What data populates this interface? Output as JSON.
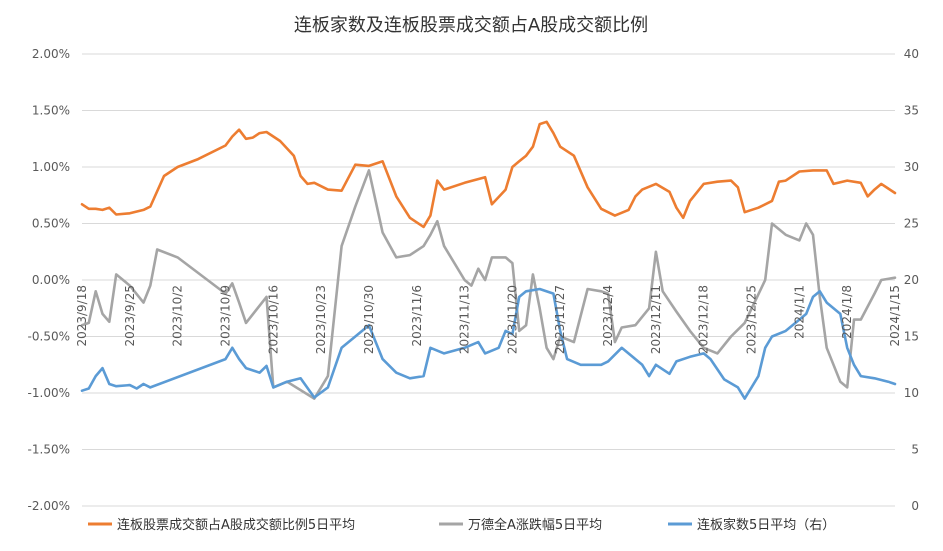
{
  "chart_data": {
    "type": "line",
    "title": "连板家数及连板股票成交额占A股成交额比例",
    "y_left_ticks": [
      "2.00%",
      "1.50%",
      "1.00%",
      "0.50%",
      "0.00%",
      "-0.50%",
      "-1.00%",
      "-1.50%",
      "-2.00%"
    ],
    "y_right_ticks": [
      "40",
      "35",
      "30",
      "25",
      "20",
      "15",
      "10",
      "5",
      "0"
    ],
    "ylim_left": [
      -2.0,
      2.0
    ],
    "ylim_right": [
      0,
      40
    ],
    "x_ticks": [
      "2023/9/18",
      "2023/9/25",
      "2023/10/2",
      "2023/10/9",
      "2023/10/16",
      "2023/10/23",
      "2023/10/30",
      "2023/11/6",
      "2023/11/13",
      "2023/11/20",
      "2023/11/27",
      "2023/12/4",
      "2023/12/11",
      "2023/12/18",
      "2023/12/25",
      "2024/1/1",
      "2024/1/8",
      "2024/1/15"
    ],
    "x_start": "2023/9/18",
    "x_end": "2024/1/15",
    "grid": "horizontal",
    "legend_position": "bottom",
    "series": [
      {
        "name": "连板股票成交额占A股成交额比例5日平均",
        "axis": "left",
        "color": "#ED7D31",
        "points": [
          [
            "2023/9/18",
            0.67
          ],
          [
            "2023/9/19",
            0.63
          ],
          [
            "2023/9/20",
            0.63
          ],
          [
            "2023/9/21",
            0.62
          ],
          [
            "2023/9/22",
            0.64
          ],
          [
            "2023/9/23",
            0.58
          ],
          [
            "2023/9/25",
            0.59
          ],
          [
            "2023/9/27",
            0.62
          ],
          [
            "2023/9/28",
            0.65
          ],
          [
            "2023/9/30",
            0.92
          ],
          [
            "2023/10/2",
            1.0
          ],
          [
            "2023/10/5",
            1.07
          ],
          [
            "2023/10/9",
            1.19
          ],
          [
            "2023/10/10",
            1.27
          ],
          [
            "2023/10/11",
            1.33
          ],
          [
            "2023/10/12",
            1.25
          ],
          [
            "2023/10/13",
            1.26
          ],
          [
            "2023/10/14",
            1.3
          ],
          [
            "2023/10/15",
            1.31
          ],
          [
            "2023/10/17",
            1.23
          ],
          [
            "2023/10/19",
            1.1
          ],
          [
            "2023/10/20",
            0.92
          ],
          [
            "2023/10/21",
            0.85
          ],
          [
            "2023/10/22",
            0.86
          ],
          [
            "2023/10/24",
            0.8
          ],
          [
            "2023/10/26",
            0.79
          ],
          [
            "2023/10/28",
            1.02
          ],
          [
            "2023/10/30",
            1.01
          ],
          [
            "2023/11/1",
            1.05
          ],
          [
            "2023/11/3",
            0.74
          ],
          [
            "2023/11/5",
            0.55
          ],
          [
            "2023/11/7",
            0.47
          ],
          [
            "2023/11/8",
            0.57
          ],
          [
            "2023/11/9",
            0.88
          ],
          [
            "2023/11/10",
            0.8
          ],
          [
            "2023/11/13",
            0.86
          ],
          [
            "2023/11/16",
            0.91
          ],
          [
            "2023/11/17",
            0.67
          ],
          [
            "2023/11/19",
            0.8
          ],
          [
            "2023/11/20",
            1.0
          ],
          [
            "2023/11/21",
            1.05
          ],
          [
            "2023/11/22",
            1.1
          ],
          [
            "2023/11/23",
            1.18
          ],
          [
            "2023/11/24",
            1.38
          ],
          [
            "2023/11/25",
            1.4
          ],
          [
            "2023/11/26",
            1.3
          ],
          [
            "2023/11/27",
            1.18
          ],
          [
            "2023/11/29",
            1.1
          ],
          [
            "2023/12/1",
            0.82
          ],
          [
            "2023/12/3",
            0.63
          ],
          [
            "2023/12/5",
            0.57
          ],
          [
            "2023/12/7",
            0.62
          ],
          [
            "2023/12/8",
            0.74
          ],
          [
            "2023/12/9",
            0.8
          ],
          [
            "2023/12/11",
            0.85
          ],
          [
            "2023/12/13",
            0.78
          ],
          [
            "2023/12/14",
            0.64
          ],
          [
            "2023/12/15",
            0.55
          ],
          [
            "2023/12/16",
            0.7
          ],
          [
            "2023/12/18",
            0.85
          ],
          [
            "2023/12/20",
            0.87
          ],
          [
            "2023/12/22",
            0.88
          ],
          [
            "2023/12/23",
            0.82
          ],
          [
            "2023/12/24",
            0.6
          ],
          [
            "2023/12/26",
            0.64
          ],
          [
            "2023/12/28",
            0.7
          ],
          [
            "2023/12/29",
            0.87
          ],
          [
            "2023/12/30",
            0.88
          ],
          [
            "2024/1/1",
            0.96
          ],
          [
            "2024/1/3",
            0.97
          ],
          [
            "2024/1/5",
            0.97
          ],
          [
            "2024/1/6",
            0.85
          ],
          [
            "2024/1/8",
            0.88
          ],
          [
            "2024/1/10",
            0.86
          ],
          [
            "2024/1/11",
            0.74
          ],
          [
            "2024/1/12",
            0.8
          ],
          [
            "2024/1/13",
            0.85
          ],
          [
            "2024/1/14",
            0.81
          ],
          [
            "2024/1/15",
            0.77
          ]
        ]
      },
      {
        "name": "万德全A涨跌幅5日平均",
        "axis": "left",
        "color": "#A5A5A5",
        "points": [
          [
            "2023/9/18",
            -0.4
          ],
          [
            "2023/9/19",
            -0.38
          ],
          [
            "2023/9/20",
            -0.1
          ],
          [
            "2023/9/21",
            -0.3
          ],
          [
            "2023/9/22",
            -0.37
          ],
          [
            "2023/9/23",
            0.05
          ],
          [
            "2023/9/25",
            -0.05
          ],
          [
            "2023/9/27",
            -0.2
          ],
          [
            "2023/9/28",
            -0.05
          ],
          [
            "2023/9/29",
            0.27
          ],
          [
            "2023/10/2",
            0.2
          ],
          [
            "2023/10/9",
            -0.12
          ],
          [
            "2023/10/10",
            -0.03
          ],
          [
            "2023/10/11",
            -0.2
          ],
          [
            "2023/10/12",
            -0.38
          ],
          [
            "2023/10/15",
            -0.15
          ],
          [
            "2023/10/16",
            -0.95
          ],
          [
            "2023/10/18",
            -0.9
          ],
          [
            "2023/10/22",
            -1.05
          ],
          [
            "2023/10/24",
            -0.85
          ],
          [
            "2023/10/26",
            0.3
          ],
          [
            "2023/10/28",
            0.65
          ],
          [
            "2023/10/30",
            0.97
          ],
          [
            "2023/11/1",
            0.42
          ],
          [
            "2023/11/3",
            0.2
          ],
          [
            "2023/11/5",
            0.22
          ],
          [
            "2023/11/7",
            0.3
          ],
          [
            "2023/11/8",
            0.4
          ],
          [
            "2023/11/9",
            0.52
          ],
          [
            "2023/11/10",
            0.3
          ],
          [
            "2023/11/13",
            0.0
          ],
          [
            "2023/11/14",
            -0.05
          ],
          [
            "2023/11/15",
            0.1
          ],
          [
            "2023/11/16",
            0.0
          ],
          [
            "2023/11/17",
            0.2
          ],
          [
            "2023/11/19",
            0.2
          ],
          [
            "2023/11/20",
            0.15
          ],
          [
            "2023/11/21",
            -0.45
          ],
          [
            "2023/11/22",
            -0.4
          ],
          [
            "2023/11/23",
            0.05
          ],
          [
            "2023/11/24",
            -0.25
          ],
          [
            "2023/11/25",
            -0.6
          ],
          [
            "2023/11/26",
            -0.7
          ],
          [
            "2023/11/27",
            -0.5
          ],
          [
            "2023/11/29",
            -0.55
          ],
          [
            "2023/12/1",
            -0.08
          ],
          [
            "2023/12/3",
            -0.1
          ],
          [
            "2023/12/4",
            -0.12
          ],
          [
            "2023/12/5",
            -0.55
          ],
          [
            "2023/12/6",
            -0.42
          ],
          [
            "2023/12/8",
            -0.4
          ],
          [
            "2023/12/10",
            -0.25
          ],
          [
            "2023/12/11",
            0.25
          ],
          [
            "2023/12/12",
            -0.1
          ],
          [
            "2023/12/14",
            -0.28
          ],
          [
            "2023/12/16",
            -0.45
          ],
          [
            "2023/12/18",
            -0.6
          ],
          [
            "2023/12/20",
            -0.65
          ],
          [
            "2023/12/22",
            -0.5
          ],
          [
            "2023/12/24",
            -0.38
          ],
          [
            "2023/12/27",
            0.0
          ],
          [
            "2023/12/28",
            0.5
          ],
          [
            "2023/12/30",
            0.4
          ],
          [
            "2024/1/1",
            0.35
          ],
          [
            "2024/1/2",
            0.5
          ],
          [
            "2024/1/3",
            0.4
          ],
          [
            "2024/1/4",
            -0.15
          ],
          [
            "2024/1/5",
            -0.6
          ],
          [
            "2024/1/7",
            -0.9
          ],
          [
            "2024/1/8",
            -0.95
          ],
          [
            "2024/1/9",
            -0.35
          ],
          [
            "2024/1/10",
            -0.35
          ],
          [
            "2024/1/12",
            -0.12
          ],
          [
            "2024/1/13",
            0.0
          ],
          [
            "2024/1/15",
            0.02
          ]
        ]
      },
      {
        "name": "连板家数5日平均（右）",
        "axis": "right",
        "color": "#5B9BD5",
        "points": [
          [
            "2023/9/18",
            10.2
          ],
          [
            "2023/9/19",
            10.4
          ],
          [
            "2023/9/20",
            11.5
          ],
          [
            "2023/9/21",
            12.2
          ],
          [
            "2023/9/22",
            10.8
          ],
          [
            "2023/9/23",
            10.6
          ],
          [
            "2023/9/25",
            10.7
          ],
          [
            "2023/9/26",
            10.4
          ],
          [
            "2023/9/27",
            10.8
          ],
          [
            "2023/9/28",
            10.5
          ],
          [
            "2023/10/9",
            13.0
          ],
          [
            "2023/10/10",
            14.0
          ],
          [
            "2023/10/11",
            13.0
          ],
          [
            "2023/10/12",
            12.2
          ],
          [
            "2023/10/14",
            11.8
          ],
          [
            "2023/10/15",
            12.4
          ],
          [
            "2023/10/16",
            10.5
          ],
          [
            "2023/10/18",
            11.0
          ],
          [
            "2023/10/20",
            11.3
          ],
          [
            "2023/10/22",
            9.6
          ],
          [
            "2023/10/24",
            10.5
          ],
          [
            "2023/10/26",
            14.0
          ],
          [
            "2023/10/28",
            15.0
          ],
          [
            "2023/10/30",
            16.0
          ],
          [
            "2023/11/1",
            13.0
          ],
          [
            "2023/11/3",
            11.8
          ],
          [
            "2023/11/5",
            11.3
          ],
          [
            "2023/11/7",
            11.5
          ],
          [
            "2023/11/8",
            14.0
          ],
          [
            "2023/11/10",
            13.5
          ],
          [
            "2023/11/13",
            14.0
          ],
          [
            "2023/11/15",
            14.5
          ],
          [
            "2023/11/16",
            13.5
          ],
          [
            "2023/11/18",
            14.0
          ],
          [
            "2023/11/19",
            15.5
          ],
          [
            "2023/11/20",
            15.2
          ],
          [
            "2023/11/21",
            18.5
          ],
          [
            "2023/11/22",
            19.0
          ],
          [
            "2023/11/24",
            19.2
          ],
          [
            "2023/11/26",
            18.8
          ],
          [
            "2023/11/27",
            15.5
          ],
          [
            "2023/11/28",
            13.0
          ],
          [
            "2023/11/30",
            12.5
          ],
          [
            "2023/12/3",
            12.5
          ],
          [
            "2023/12/4",
            12.8
          ],
          [
            "2023/12/6",
            14.0
          ],
          [
            "2023/12/8",
            13.0
          ],
          [
            "2023/12/9",
            12.5
          ],
          [
            "2023/12/10",
            11.5
          ],
          [
            "2023/12/11",
            12.5
          ],
          [
            "2023/12/13",
            11.7
          ],
          [
            "2023/12/14",
            12.8
          ],
          [
            "2023/12/16",
            13.2
          ],
          [
            "2023/12/18",
            13.5
          ],
          [
            "2023/12/19",
            13.0
          ],
          [
            "2023/12/21",
            11.2
          ],
          [
            "2023/12/23",
            10.5
          ],
          [
            "2023/12/24",
            9.5
          ],
          [
            "2023/12/25",
            10.5
          ],
          [
            "2023/12/26",
            11.5
          ],
          [
            "2023/12/27",
            14.0
          ],
          [
            "2023/12/28",
            15.0
          ],
          [
            "2023/12/30",
            15.5
          ],
          [
            "2024/1/1",
            16.5
          ],
          [
            "2024/1/2",
            17.0
          ],
          [
            "2024/1/3",
            18.5
          ],
          [
            "2024/1/4",
            19.0
          ],
          [
            "2024/1/5",
            18.0
          ],
          [
            "2024/1/7",
            17.0
          ],
          [
            "2024/1/8",
            14.0
          ],
          [
            "2024/1/9",
            12.5
          ],
          [
            "2024/1/10",
            11.5
          ],
          [
            "2024/1/12",
            11.3
          ],
          [
            "2024/1/14",
            11.0
          ],
          [
            "2024/1/15",
            10.8
          ]
        ]
      }
    ]
  }
}
